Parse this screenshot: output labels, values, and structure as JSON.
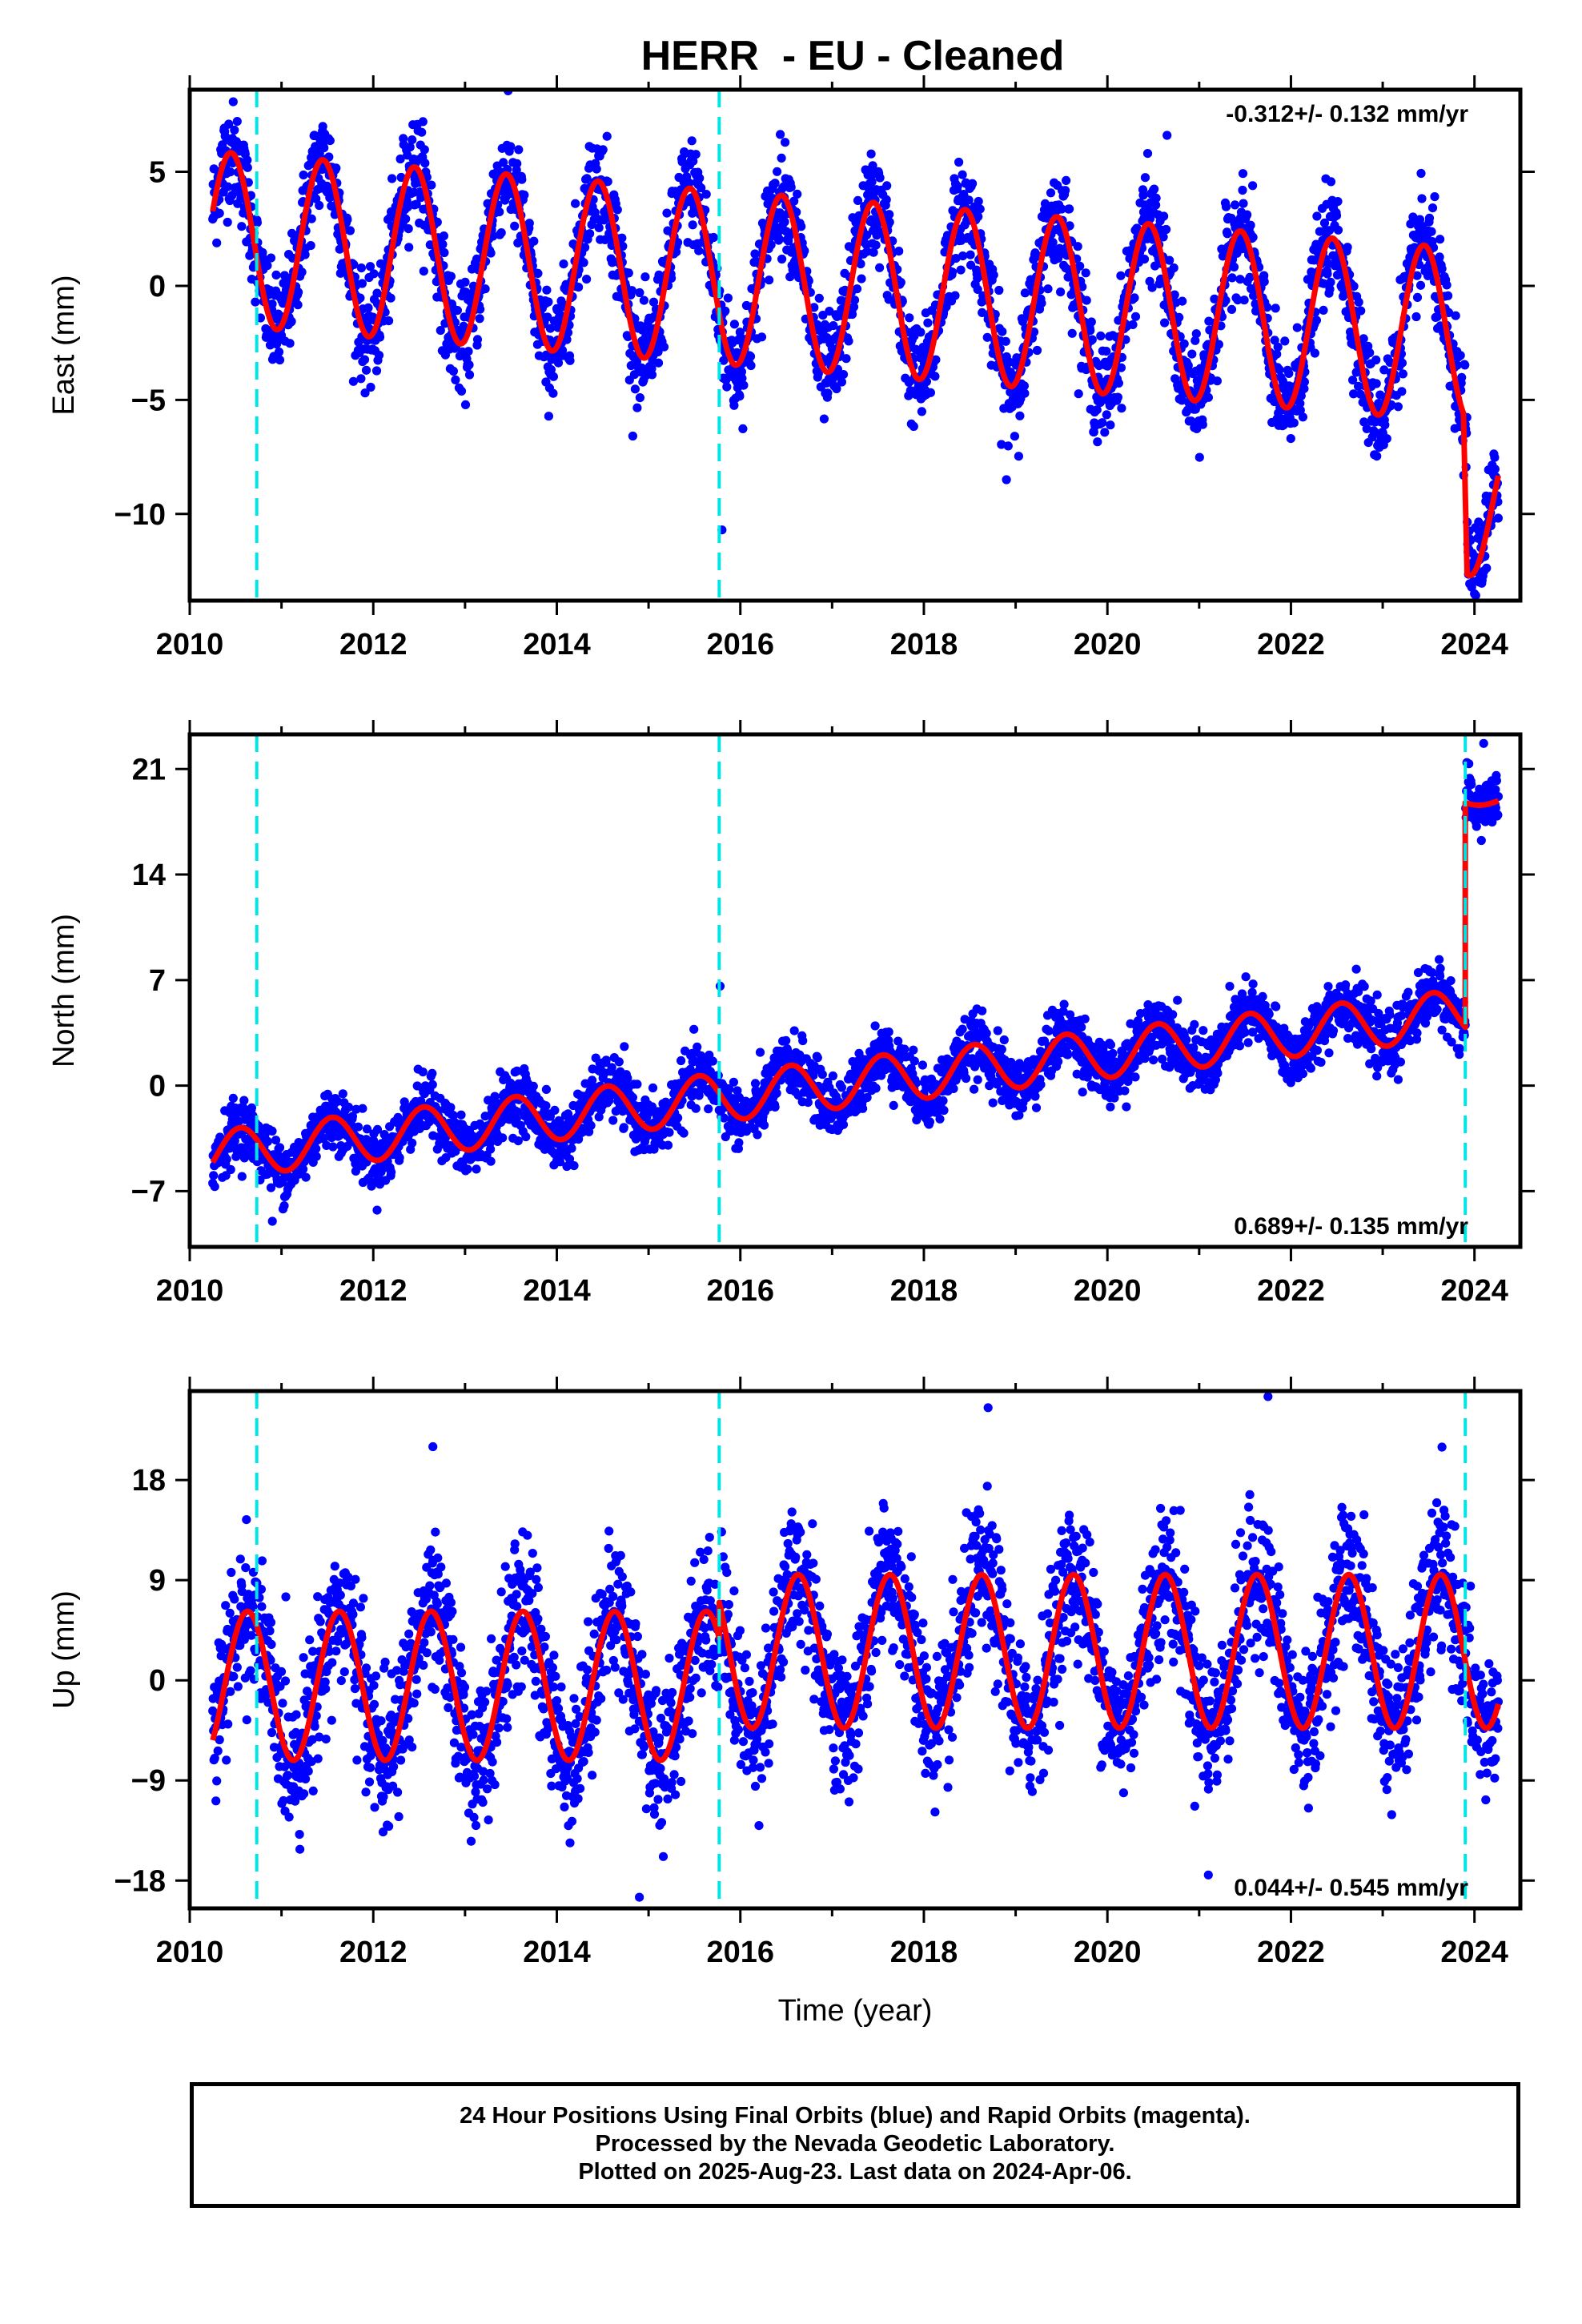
{
  "title": "HERR  - EU - Cleaned",
  "footer": {
    "line1": "24 Hour Positions Using Final Orbits (blue) and Rapid Orbits (magenta).",
    "line2": "Processed by the Nevada Geodetic Laboratory.",
    "line3": "Plotted on 2025-Aug-23. Last data on 2024-Apr-06."
  },
  "colors": {
    "points": "#0000ff",
    "fit": "#ff0000",
    "steps": "#00e5e5",
    "frame": "#000000"
  },
  "chart_data": [
    {
      "type": "scatter",
      "title": "HERR  - EU - Cleaned",
      "xlabel": "",
      "ylabel": "East (mm)",
      "xlim": [
        2010.0,
        2024.5
      ],
      "ylim": [
        -13.8,
        8.6
      ],
      "xticks": [
        2010,
        2012,
        2014,
        2016,
        2018,
        2020,
        2022,
        2024
      ],
      "yticks": [
        5,
        0,
        -5,
        -10
      ],
      "rate_label": "-0.312+/- 0.132 mm/yr",
      "rate_position": "top-right",
      "step_epochs": [
        2010.73,
        2015.77
      ],
      "data_start": 2010.25,
      "data_end": 2024.26,
      "model": {
        "segments": [
          {
            "from": 2010.25,
            "to": 2023.88,
            "offset": 2.1,
            "rate": -0.312,
            "ref": 2010.25,
            "amp": 3.8,
            "peak": 0.45
          },
          {
            "from": 2023.92,
            "to": 2024.26,
            "offset": -9.5,
            "rate": 0.0,
            "ref": 2023.92,
            "amp": 3.2,
            "peak": 0.45
          }
        ],
        "noise": 1.5
      },
      "outliers": [
        [
          2020.65,
          6.6
        ],
        [
          2015.8,
          -10.7
        ],
        [
          2018.9,
          -8.5
        ],
        [
          2024.0,
          -13.5
        ]
      ]
    },
    {
      "type": "scatter",
      "xlabel": "",
      "ylabel": "North (mm)",
      "xlim": [
        2010.0,
        2024.5
      ],
      "ylim": [
        -10.7,
        23.3
      ],
      "xticks": [
        2010,
        2012,
        2014,
        2016,
        2018,
        2020,
        2022,
        2024
      ],
      "yticks": [
        21,
        14,
        7,
        0,
        -7
      ],
      "rate_label": "0.689+/- 0.135 mm/yr",
      "rate_position": "bottom-right",
      "step_epochs": [
        2010.73,
        2015.77,
        2023.9
      ],
      "data_start": 2010.25,
      "data_end": 2024.26,
      "model": {
        "segments": [
          {
            "from": 2010.25,
            "to": 2023.9,
            "offset": -4.6,
            "rate": 0.689,
            "ref": 2010.25,
            "amp": 1.6,
            "peak": 0.55
          },
          {
            "from": 2023.9,
            "to": 2024.26,
            "offset": 19.0,
            "rate": 0.0,
            "ref": 2023.9,
            "amp": 0.4,
            "peak": 0.55
          }
        ],
        "noise": 1.3
      },
      "outliers": [
        [
          2015.78,
          6.6
        ],
        [
          2024.1,
          22.7
        ],
        [
          2010.9,
          -9.0
        ]
      ]
    },
    {
      "type": "scatter",
      "xlabel": "Time (year)",
      "ylabel": "Up (mm)",
      "xlim": [
        2010.0,
        2024.5
      ],
      "ylim": [
        -20.5,
        26.0
      ],
      "xticks": [
        2010,
        2012,
        2014,
        2016,
        2018,
        2020,
        2022,
        2024
      ],
      "yticks": [
        18,
        9,
        0,
        -9,
        -18
      ],
      "rate_label": "0.044+/- 0.545 mm/yr",
      "rate_position": "bottom-right",
      "step_epochs": [
        2010.73,
        2015.77,
        2023.9
      ],
      "data_start": 2010.25,
      "data_end": 2024.26,
      "model": {
        "segments": [
          {
            "from": 2010.25,
            "to": 2015.77,
            "offset": -0.5,
            "rate": 0.0,
            "ref": 2010.25,
            "amp": 6.7,
            "peak": 0.63
          },
          {
            "from": 2015.77,
            "to": 2024.26,
            "offset": 2.6,
            "rate": 0.0,
            "ref": 2015.77,
            "amp": 6.9,
            "peak": 0.63
          }
        ],
        "noise": 4.3
      },
      "outliers": [
        [
          2012.65,
          21.0
        ],
        [
          2018.7,
          24.5
        ],
        [
          2021.75,
          25.5
        ],
        [
          2021.1,
          -17.5
        ],
        [
          2014.9,
          -19.5
        ]
      ]
    }
  ]
}
